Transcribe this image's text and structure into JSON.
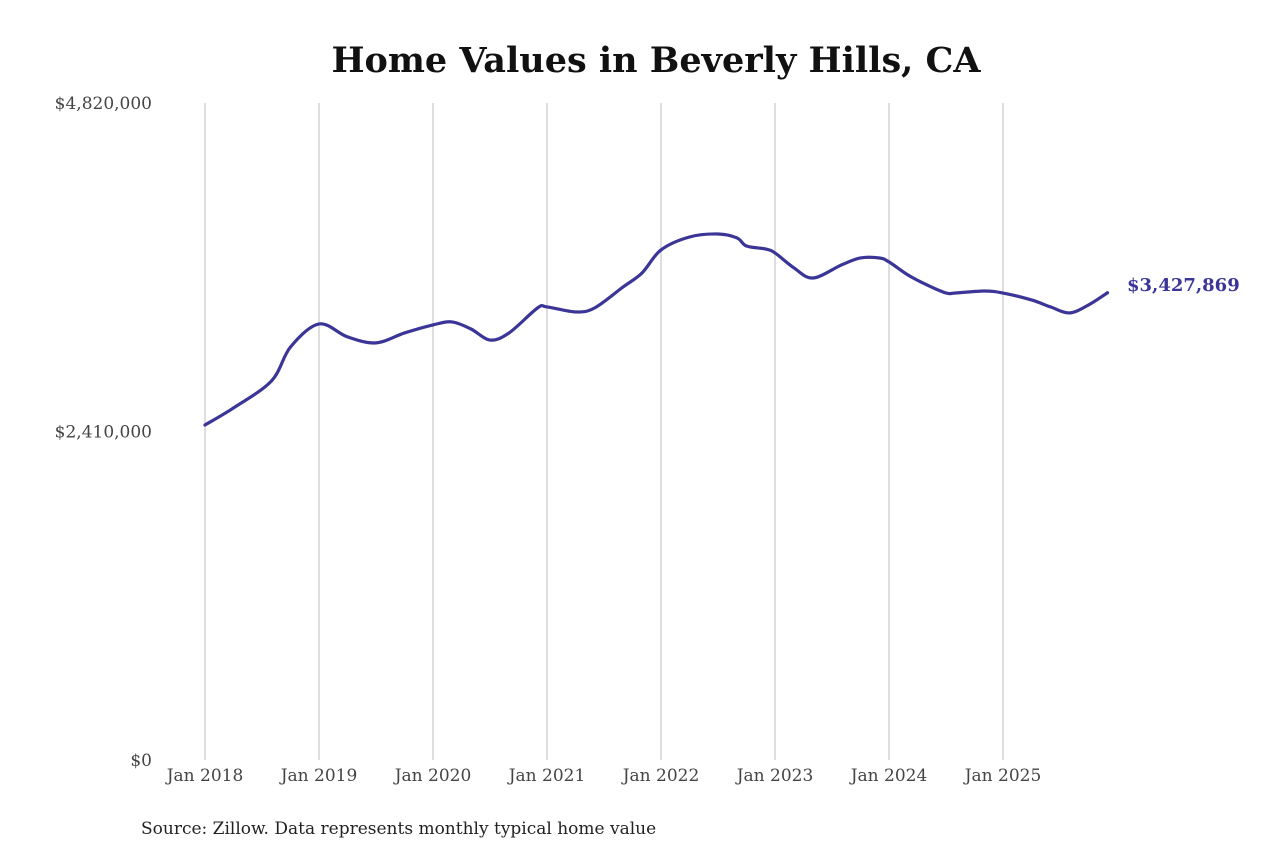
{
  "chart_data": {
    "type": "line",
    "title": "Home Values in Beverly Hills, CA",
    "xlabel": "",
    "ylabel": "",
    "source": "Source: Zillow. Data represents monthly typical home value",
    "ylim": [
      0,
      4820000
    ],
    "y_ticks": [
      0,
      2410000,
      4820000
    ],
    "y_tick_labels": [
      "$0",
      "$2,410,000",
      "$4,820,000"
    ],
    "x_ticks": [
      "2018-01",
      "2019-01",
      "2020-01",
      "2021-01",
      "2022-01",
      "2023-01",
      "2024-01",
      "2025-01"
    ],
    "x_tick_labels": [
      "Jan 2018",
      "Jan 2019",
      "Jan 2020",
      "Jan 2021",
      "Jan 2022",
      "Jan 2023",
      "Jan 2024",
      "Jan 2025"
    ],
    "grid": "vertical lines at x ticks",
    "line_color": "#3a3597",
    "end_label": "$3,427,869",
    "series": [
      {
        "x": [
          "2018-01",
          "2018-04",
          "2018-08",
          "2018-10",
          "2019-01",
          "2019-04",
          "2019-07",
          "2019-10",
          "2020-01",
          "2020-03",
          "2020-05",
          "2020-07",
          "2020-09",
          "2020-12",
          "2021-01",
          "2021-04",
          "2021-06",
          "2021-09",
          "2021-11",
          "2022-01",
          "2022-04",
          "2022-07",
          "2022-09",
          "2022-10",
          "2022-12",
          "2023-01",
          "2023-03",
          "2023-05",
          "2023-08",
          "2023-10",
          "2023-12",
          "2024-01",
          "2024-03",
          "2024-05",
          "2024-07",
          "2024-08",
          "2024-11",
          "2025-01",
          "2025-04",
          "2025-06",
          "2025-08",
          "2025-10",
          "2025-12"
        ],
        "values": [
          2458000,
          2583000,
          2781000,
          3030000,
          3199000,
          3104000,
          3060000,
          3133000,
          3192000,
          3214000,
          3162000,
          3081000,
          3133000,
          3316000,
          3324000,
          3287000,
          3316000,
          3470000,
          3573000,
          3742000,
          3837000,
          3859000,
          3830000,
          3771000,
          3749000,
          3720000,
          3610000,
          3536000,
          3632000,
          3683000,
          3683000,
          3654000,
          3558000,
          3485000,
          3426000,
          3426000,
          3441000,
          3426000,
          3375000,
          3324000,
          3280000,
          3338000,
          3427869
        ]
      }
    ]
  }
}
